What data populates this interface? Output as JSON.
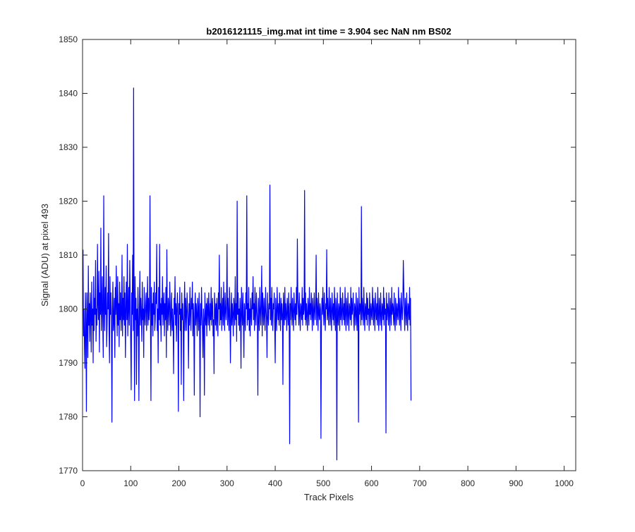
{
  "chart_data": {
    "type": "line",
    "title": "b2016121115_img.mat int time = 3.904 sec  NaN nm BS02",
    "xlabel": "Track Pixels",
    "ylabel": "Signal (ADU) at pixel 493",
    "xlim": [
      0,
      1024
    ],
    "ylim": [
      1770,
      1850
    ],
    "xticks": [
      0,
      100,
      200,
      300,
      400,
      500,
      600,
      700,
      800,
      900,
      1000
    ],
    "yticks": [
      1770,
      1780,
      1790,
      1800,
      1810,
      1820,
      1830,
      1840,
      1850
    ],
    "grid": false,
    "series": [
      {
        "color": "#0000ff",
        "sampling": "values at x = 1, 2, 3, ... (one per track pixel)",
        "approx": "noisy trace around 1799.5, range roughly 1772–1841",
        "values": [
          1811,
          1795,
          1800,
          1793,
          1789,
          1803,
          1797,
          1781,
          1803,
          1798,
          1791,
          1808,
          1797,
          1801,
          1794,
          1803,
          1799,
          1792,
          1805,
          1797,
          1800,
          1790,
          1806,
          1796,
          1802,
          1799,
          1809,
          1794,
          1800,
          1797,
          1812,
          1801,
          1798,
          1807,
          1792,
          1803,
          1799,
          1815,
          1796,
          1800,
          1806,
          1797,
          1791,
          1821,
          1800,
          1796,
          1804,
          1799,
          1808,
          1793,
          1797,
          1803,
          1800,
          1814,
          1796,
          1790,
          1806,
          1799,
          1803,
          1797,
          1779,
          1800,
          1805,
          1796,
          1798,
          1802,
          1791,
          1804,
          1799,
          1808,
          1800,
          1795,
          1806,
          1797,
          1801,
          1793,
          1805,
          1798,
          1803,
          1796,
          1799,
          1810,
          1795,
          1802,
          1798,
          1806,
          1797,
          1803,
          1791,
          1800,
          1805,
          1798,
          1812,
          1795,
          1800,
          1804,
          1797,
          1809,
          1801,
          1794,
          1785,
          1803,
          1799,
          1810,
          1796,
          1841,
          1800,
          1783,
          1806,
          1798,
          1802,
          1786,
          1800,
          1795,
          1804,
          1798,
          1783,
          1800,
          1807,
          1797,
          1802,
          1799,
          1794,
          1805,
          1798,
          1800,
          1791,
          1804,
          1799,
          1797,
          1801,
          1803,
          1796,
          1800,
          1806,
          1797,
          1802,
          1798,
          1800,
          1821,
          1799,
          1783,
          1804,
          1797,
          1801,
          1795,
          1803,
          1799,
          1805,
          1796,
          1798,
          1803,
          1801,
          1812,
          1796,
          1800,
          1790,
          1804,
          1798,
          1812,
          1797,
          1801,
          1794,
          1802,
          1799,
          1806,
          1797,
          1800,
          1803,
          1795,
          1801,
          1798,
          1804,
          1791,
          1811,
          1799,
          1796,
          1802,
          1800,
          1797,
          1805,
          1801,
          1795,
          1799,
          1803,
          1796,
          1800,
          1797,
          1788,
          1802,
          1799,
          1806,
          1797,
          1801,
          1794,
          1800,
          1803,
          1798,
          1781,
          1801,
          1799,
          1804,
          1796,
          1800,
          1786,
          1803,
          1798,
          1801,
          1797,
          1783,
          1800,
          1805,
          1796,
          1802,
          1799,
          1796,
          1803,
          1800,
          1798,
          1789,
          1801,
          1797,
          1804,
          1799,
          1796,
          1802,
          1800,
          1805,
          1795,
          1801,
          1798,
          1784,
          1800,
          1803,
          1797,
          1801,
          1799,
          1795,
          1802,
          1800,
          1796,
          1803,
          1798,
          1780,
          1801,
          1797,
          1804,
          1799,
          1796,
          1791,
          1800,
          1798,
          1784,
          1803,
          1799,
          1797,
          1801,
          1795,
          1802,
          1800,
          1797,
          1803,
          1799,
          1796,
          1801,
          1798,
          1804,
          1797,
          1800,
          1802,
          1795,
          1798,
          1788,
          1803,
          1800,
          1797,
          1801,
          1796,
          1802,
          1799,
          1795,
          1803,
          1800,
          1810,
          1797,
          1801,
          1798,
          1804,
          1796,
          1800,
          1802,
          1797,
          1805,
          1799,
          1796,
          1803,
          1800,
          1798,
          1801,
          1812,
          1797,
          1802,
          1799,
          1796,
          1804,
          1800,
          1790,
          1798,
          1803,
          1797,
          1801,
          1799,
          1795,
          1802,
          1800,
          1797,
          1806,
          1798,
          1801,
          1794,
          1820,
          1799,
          1803,
          1797,
          1800,
          1796,
          1802,
          1799,
          1789,
          1804,
          1800,
          1797,
          1803,
          1798,
          1791,
          1801,
          1799,
          1796,
          1803,
          1800,
          1821,
          1797,
          1801,
          1798,
          1804,
          1796,
          1800,
          1795,
          1802,
          1799,
          1797,
          1803,
          1800,
          1806,
          1798,
          1801,
          1796,
          1804,
          1799,
          1797,
          1803,
          1800,
          1798,
          1784,
          1802,
          1799,
          1796,
          1804,
          1800,
          1797,
          1801,
          1808,
          1795,
          1803,
          1800,
          1797,
          1802,
          1799,
          1796,
          1804,
          1800,
          1798,
          1791,
          1803,
          1799,
          1797,
          1801,
          1800,
          1823,
          1798,
          1802,
          1797,
          1804,
          1799,
          1796,
          1801,
          1800,
          1803,
          1797,
          1790,
          1802,
          1799,
          1796,
          1804,
          1800,
          1798,
          1801,
          1797,
          1803,
          1800,
          1796,
          1802,
          1798,
          1801,
          1799,
          1786,
          1803,
          1800,
          1797,
          1804,
          1798,
          1801,
          1799,
          1796,
          1802,
          1800,
          1797,
          1803,
          1799,
          1775,
          1801,
          1798,
          1804,
          1800,
          1797,
          1802,
          1799,
          1796,
          1803,
          1800,
          1798,
          1801,
          1797,
          1804,
          1799,
          1813,
          1802,
          1800,
          1797,
          1803,
          1799,
          1796,
          1801,
          1800,
          1798,
          1804,
          1797,
          1802,
          1799,
          1800,
          1822,
          1798,
          1803,
          1797,
          1801,
          1799,
          1796,
          1802,
          1800,
          1797,
          1804,
          1799,
          1801,
          1798,
          1803,
          1800,
          1796,
          1802,
          1799,
          1797,
          1803,
          1800,
          1798,
          1801,
          1810,
          1797,
          1802,
          1800,
          1796,
          1803,
          1799,
          1798,
          1801,
          1800,
          1776,
          1797,
          1802,
          1799,
          1804,
          1800,
          1797,
          1803,
          1799,
          1796,
          1801,
          1800,
          1811,
          1798,
          1802,
          1799,
          1797,
          1804,
          1800,
          1797,
          1802,
          1799,
          1796,
          1803,
          1800,
          1798,
          1801,
          1797,
          1804,
          1799,
          1796,
          1802,
          1800,
          1772,
          1803,
          1799,
          1797,
          1801,
          1800,
          1796,
          1804,
          1798,
          1802,
          1799,
          1797,
          1803,
          1800,
          1798,
          1801,
          1797,
          1804,
          1799,
          1796,
          1802,
          1800,
          1797,
          1803,
          1799,
          1796,
          1801,
          1800,
          1798,
          1804,
          1797,
          1802,
          1799,
          1800,
          1803,
          1798,
          1796,
          1801,
          1800,
          1797,
          1803,
          1799,
          1796,
          1802,
          1800,
          1779,
          1804,
          1799,
          1801,
          1800,
          1797,
          1819,
          1798,
          1802,
          1800,
          1797,
          1804,
          1799,
          1796,
          1801,
          1800,
          1798,
          1803,
          1797,
          1802,
          1799,
          1800,
          1796,
          1803,
          1800,
          1797,
          1801,
          1799,
          1798,
          1804,
          1800,
          1797,
          1802,
          1799,
          1796,
          1803,
          1800,
          1798,
          1801,
          1797,
          1804,
          1799,
          1796,
          1802,
          1800,
          1797,
          1803,
          1799,
          1796,
          1801,
          1800,
          1798,
          1804,
          1797,
          1802,
          1799,
          1800,
          1777,
          1803,
          1798,
          1801,
          1800,
          1797,
          1803,
          1799,
          1796,
          1802,
          1800,
          1797,
          1804,
          1799,
          1801,
          1800,
          1797,
          1803,
          1798,
          1796,
          1802,
          1800,
          1797,
          1801,
          1799,
          1798,
          1804,
          1800,
          1797,
          1802,
          1799,
          1796,
          1803,
          1800,
          1798,
          1801,
          1809,
          1804,
          1799,
          1796,
          1802,
          1800,
          1797,
          1803,
          1799,
          1796,
          1801,
          1800,
          1798,
          1804,
          1797,
          1802,
          1783
        ]
      }
    ]
  }
}
